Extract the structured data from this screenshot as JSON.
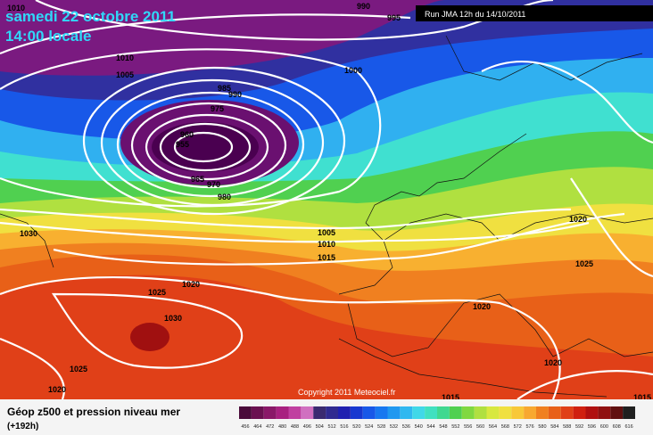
{
  "header": {
    "title": "samedi 22 octobre 2011",
    "time": "14:00 locale",
    "run": "Run JMA 12h du 14/10/2011"
  },
  "isobar_labels": [
    990,
    995,
    1010,
    1010,
    1005,
    1000,
    985,
    990,
    975,
    960,
    955,
    965,
    970,
    980,
    1030,
    1005,
    1010,
    1015,
    1020,
    1025,
    1025,
    1020,
    1030,
    1020,
    1025,
    1020,
    1020,
    1015,
    1015
  ],
  "copyright": "Copyright 2011 Meteociel.fr",
  "legend": {
    "title": "Géop z500 et pression niveau mer",
    "lead": "(+192h)",
    "scale": [
      456,
      464,
      472,
      480,
      488,
      496,
      504,
      512,
      516,
      520,
      524,
      528,
      532,
      536,
      540,
      544,
      548,
      552,
      556,
      560,
      564,
      568,
      572,
      576,
      580,
      584,
      588,
      592,
      596,
      600,
      608,
      616
    ],
    "colors": [
      "#4a0a3a",
      "#6a1050",
      "#8a1868",
      "#a82080",
      "#c040a0",
      "#d070c0",
      "#3a2a70",
      "#302a90",
      "#2020b0",
      "#1838d0",
      "#1858e8",
      "#1878f0",
      "#2098f0",
      "#30b8f0",
      "#40d8e8",
      "#40e0c0",
      "#40d890",
      "#50d050",
      "#80d840",
      "#b0e040",
      "#d8e840",
      "#f0e040",
      "#f8c838",
      "#f8a830",
      "#f08020",
      "#e86018",
      "#e04018",
      "#d02010",
      "#b01010",
      "#901010",
      "#601010",
      "#202020"
    ]
  }
}
